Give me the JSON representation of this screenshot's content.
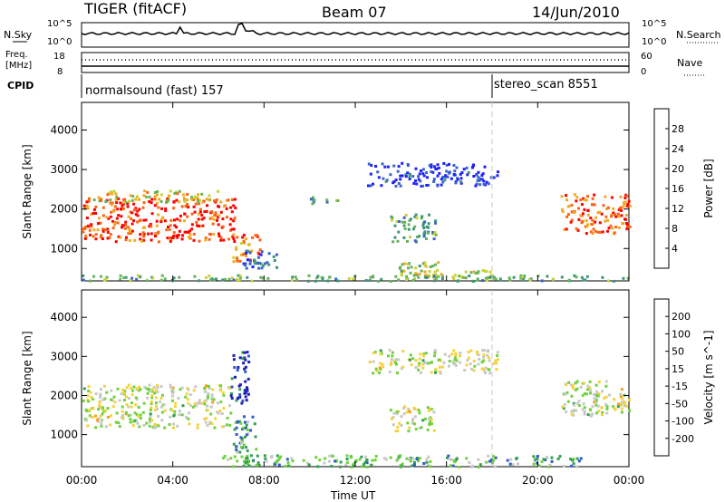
{
  "header": {
    "radar": "TIGER (fitACF)",
    "beam": "Beam 07",
    "date": "14/Jun/2010"
  },
  "top_panels": {
    "nsky_label": "N.Sky",
    "nsearch_label": "N.Search",
    "noise_ticks_left": [
      "10^5",
      "10^0"
    ],
    "noise_ticks_right": [
      "10^5",
      "10^0"
    ],
    "freq_label": "Freq.",
    "freq_unit": "[MHz]",
    "freq_ticks": [
      "18",
      "8"
    ],
    "nave_label": "Nave",
    "nave_ticks": [
      "60",
      "0"
    ],
    "cpid_label": "CPID",
    "cpid_segments": [
      {
        "name": "normalsound (fast) 157",
        "start_hour": 0.0
      },
      {
        "name": "stereo_scan 8551",
        "start_hour": 18.0
      }
    ]
  },
  "chart_data": [
    {
      "type": "heatmap",
      "title": "Power",
      "ylabel": "Slant Range [km]",
      "xlabel": "Time UT",
      "xlim_hours": [
        0,
        24
      ],
      "ylim_km": [
        180,
        4700
      ],
      "yticks": [
        "1000",
        "2000",
        "3000",
        "4000"
      ],
      "xticks": [
        "00:00",
        "04:00",
        "08:00",
        "12:00",
        "16:00",
        "20:00",
        "00:00"
      ],
      "colorbar_label": "Power [dB]",
      "colorbar_ticks": [
        "4",
        "8",
        "12",
        "16",
        "20",
        "24",
        "28"
      ],
      "colorbar_colors": [
        "#1e1eff",
        "#3c64c8",
        "#3c9678",
        "#64b45a",
        "#c8d232",
        "#f0aa1e",
        "#fa6414",
        "#ff0000"
      ],
      "regions": [
        {
          "t0": 0.0,
          "t1": 6.8,
          "r0": 1200,
          "r1": 2300,
          "level": 0.88
        },
        {
          "t0": 0.4,
          "t1": 6.0,
          "r0": 2200,
          "r1": 2500,
          "level": 0.6
        },
        {
          "t0": 6.6,
          "t1": 7.8,
          "r0": 700,
          "r1": 1400,
          "level": 0.75
        },
        {
          "t0": 7.0,
          "t1": 8.6,
          "r0": 500,
          "r1": 1000,
          "level": 0.25
        },
        {
          "t0": 10.0,
          "t1": 11.2,
          "r0": 2150,
          "r1": 2350,
          "level": 0.35
        },
        {
          "t0": 13.5,
          "t1": 15.5,
          "r0": 1200,
          "r1": 1900,
          "level": 0.35
        },
        {
          "t0": 13.9,
          "t1": 15.8,
          "r0": 300,
          "r1": 700,
          "level": 0.5
        },
        {
          "t0": 14.5,
          "t1": 18.0,
          "r0": 250,
          "r1": 500,
          "level": 0.55
        },
        {
          "t0": 21.0,
          "t1": 24.0,
          "r0": 1400,
          "r1": 2400,
          "level": 0.8
        },
        {
          "t0": 12.5,
          "t1": 18.2,
          "r0": 2600,
          "r1": 3200,
          "level": 0.1
        },
        {
          "t0": 0.0,
          "t1": 24.0,
          "r0": 200,
          "r1": 350,
          "level": 0.4
        }
      ]
    },
    {
      "type": "heatmap",
      "title": "Velocity",
      "ylabel": "Slant Range [km]",
      "xlabel": "Time UT",
      "xlim_hours": [
        0,
        24
      ],
      "ylim_km": [
        180,
        4700
      ],
      "yticks": [
        "1000",
        "2000",
        "3000",
        "4000"
      ],
      "xticks": [
        "00:00",
        "04:00",
        "08:00",
        "12:00",
        "16:00",
        "20:00",
        "00:00"
      ],
      "colorbar_label": "Velocity [m s^-1]",
      "colorbar_ticks": [
        "200",
        "100",
        "50",
        "15",
        "-15",
        "-50",
        "-100",
        "-200"
      ],
      "colorbar_colors": [
        "#1e1eb4",
        "#325ac8",
        "#32a050",
        "#6ed23c",
        "#c8c8c8",
        "#f5d23c",
        "#f5a01e",
        "#f05a14",
        "#e60000"
      ],
      "regions": [
        {
          "t0": 0.0,
          "t1": 6.5,
          "r0": 1200,
          "r1": 2300,
          "level": 0.5
        },
        {
          "t0": 6.6,
          "t1": 7.6,
          "r0": 300,
          "r1": 1500,
          "level": 0.3
        },
        {
          "t0": 6.5,
          "t1": 7.3,
          "r0": 1800,
          "r1": 3200,
          "level": 0.1
        },
        {
          "t0": 13.5,
          "t1": 15.5,
          "r0": 1100,
          "r1": 1800,
          "level": 0.5
        },
        {
          "t0": 6.0,
          "t1": 22.0,
          "r0": 200,
          "r1": 500,
          "level": 0.35
        },
        {
          "t0": 21.0,
          "t1": 24.0,
          "r0": 1500,
          "r1": 2400,
          "level": 0.5
        },
        {
          "t0": 12.5,
          "t1": 18.2,
          "r0": 2600,
          "r1": 3200,
          "level": 0.5
        }
      ]
    }
  ]
}
